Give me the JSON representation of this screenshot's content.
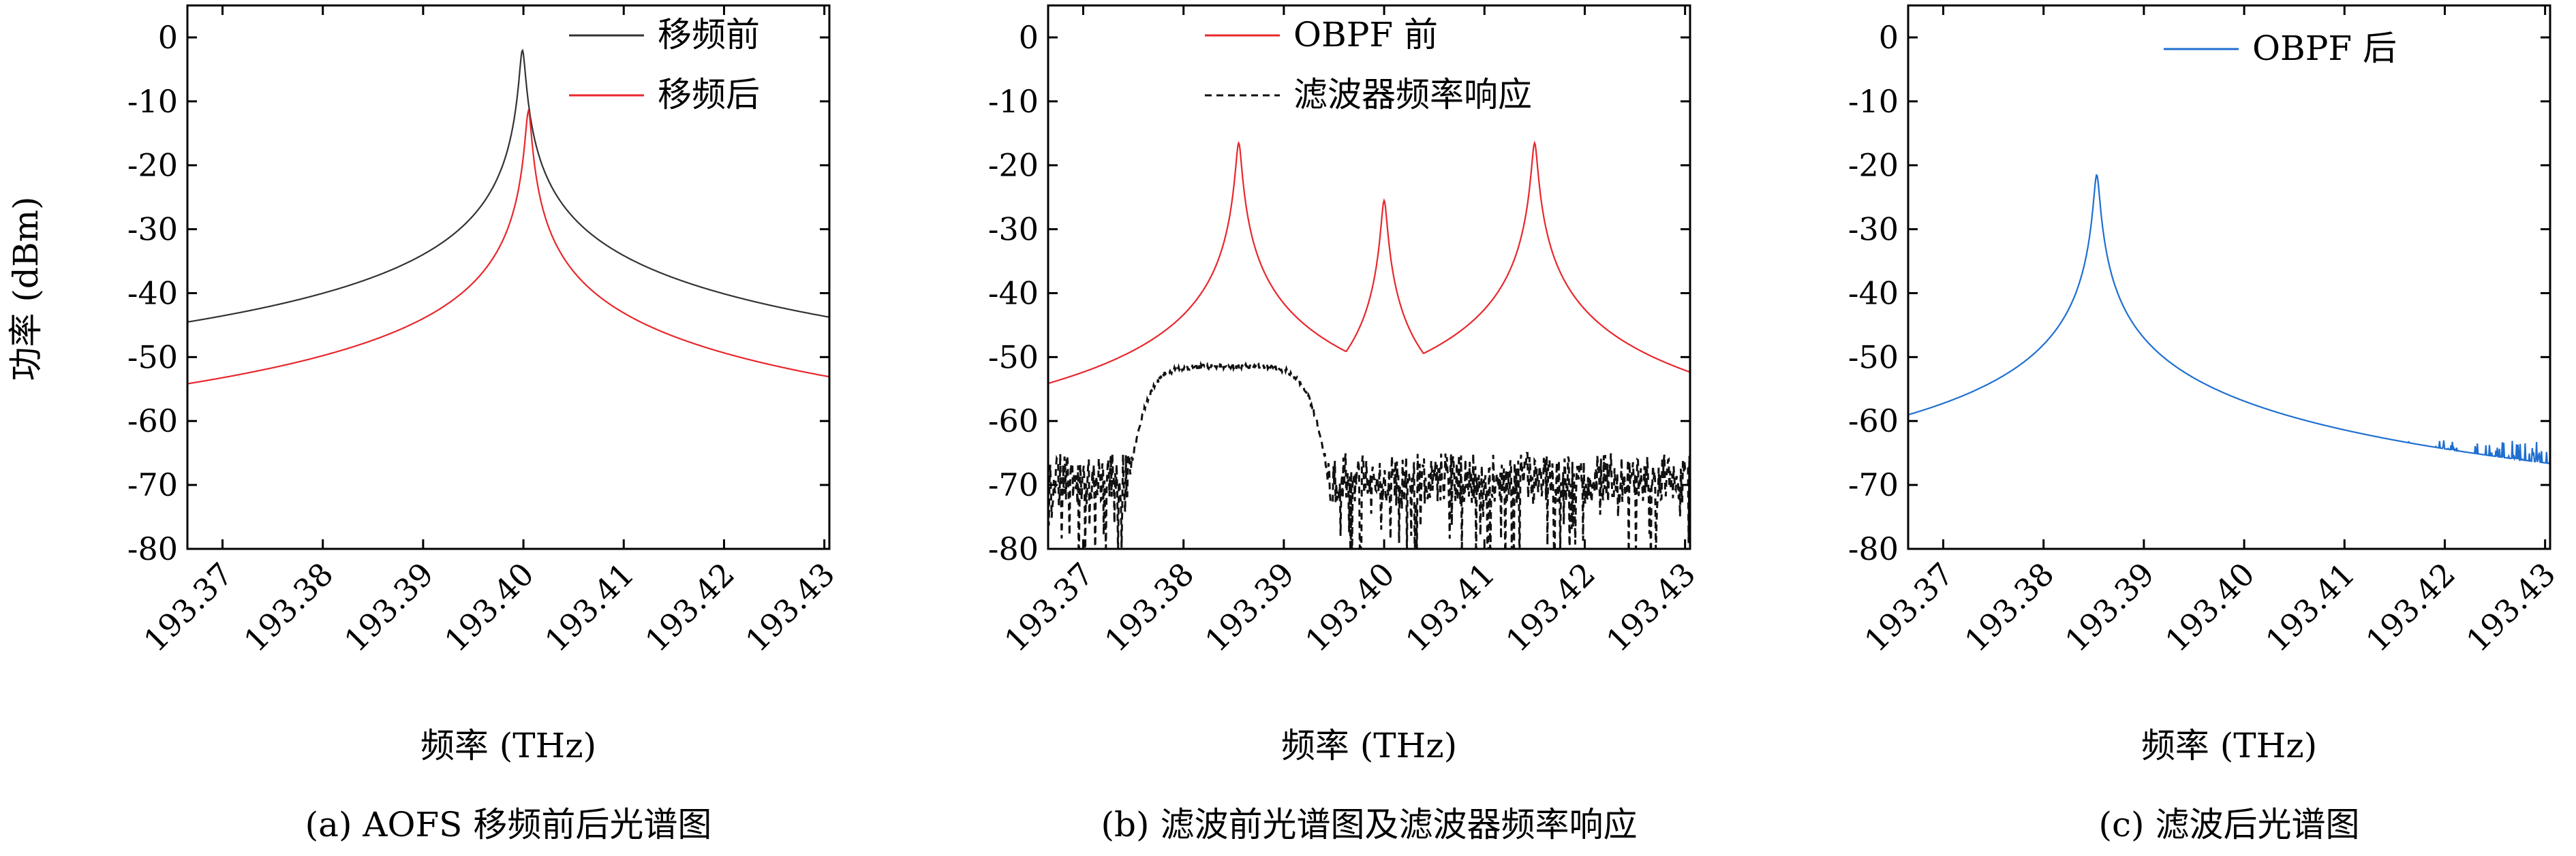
{
  "ylabel": "功率 (dBm)",
  "colors": {
    "black": "#333333",
    "red": "#e8272c",
    "blue": "#1f6fd1",
    "dash": "#111111"
  },
  "chart_data": [
    {
      "type": "line",
      "caption": "(a) AOFS 移频前后光谱图",
      "xlabel": "频率 (THz)",
      "xlim": [
        193.3665,
        193.4305
      ],
      "ylim": [
        -80,
        5
      ],
      "xticks": [
        193.37,
        193.38,
        193.39,
        193.4,
        193.41,
        193.42,
        193.43
      ],
      "xtick_labels": [
        "193.37",
        "193.38",
        "193.39",
        "193.40",
        "193.41",
        "193.42",
        "193.43"
      ],
      "yticks": [
        0,
        -10,
        -20,
        -30,
        -40,
        -50,
        -60,
        -70,
        -80
      ],
      "ytick_labels": [
        "0",
        "-10",
        "-20",
        "-30",
        "-40",
        "-50",
        "-60",
        "-70",
        "-80"
      ],
      "legend_position": "top-right",
      "series": [
        {
          "name": "移频前",
          "color": "#333333",
          "style": "solid",
          "noise_floor": -68,
          "shoulder": {
            "center": 193.4,
            "width": 0.011,
            "level": -55
          },
          "peaks": [
            {
              "x": 193.3999,
              "y": -2
            }
          ]
        },
        {
          "name": "移频后",
          "color": "#e8272c",
          "style": "solid",
          "noise_floor": -68,
          "peaks": [
            {
              "x": 193.4005,
              "y": -11.5
            }
          ]
        }
      ]
    },
    {
      "type": "line",
      "caption": "(b) 滤波前光谱图及滤波器频率响应",
      "xlabel": "频率 (THz)",
      "xlim": [
        193.3665,
        193.4305
      ],
      "ylim": [
        -80,
        5
      ],
      "xticks": [
        193.37,
        193.38,
        193.39,
        193.4,
        193.41,
        193.42,
        193.43
      ],
      "xtick_labels": [
        "193.37",
        "193.38",
        "193.39",
        "193.40",
        "193.41",
        "193.42",
        "193.43"
      ],
      "yticks": [
        0,
        -10,
        -20,
        -30,
        -40,
        -50,
        -60,
        -70,
        -80
      ],
      "ytick_labels": [
        "0",
        "-10",
        "-20",
        "-30",
        "-40",
        "-50",
        "-60",
        "-70",
        "-80"
      ],
      "legend_position": "top-center",
      "series": [
        {
          "name": "OBPF 前",
          "color": "#e8272c",
          "style": "solid",
          "noise_floor": -68,
          "peaks": [
            {
              "x": 193.3855,
              "y": -16.5
            },
            {
              "x": 193.4,
              "y": -25.5
            },
            {
              "x": 193.415,
              "y": -16.5
            }
          ]
        },
        {
          "name": "滤波器频率响应",
          "color": "#111111",
          "style": "dashed",
          "passband": {
            "center": 193.3845,
            "width": 0.0205,
            "level": -51.5
          },
          "noise_floor": -69
        }
      ]
    },
    {
      "type": "line",
      "caption": "(c) 滤波后光谱图",
      "xlabel": "频率 (THz)",
      "xlim": [
        193.3665,
        193.4305
      ],
      "ylim": [
        -80,
        5
      ],
      "xticks": [
        193.37,
        193.38,
        193.39,
        193.4,
        193.41,
        193.42,
        193.43
      ],
      "xtick_labels": [
        "193.37",
        "193.38",
        "193.39",
        "193.40",
        "193.41",
        "193.42",
        "193.43"
      ],
      "yticks": [
        0,
        -10,
        -20,
        -30,
        -40,
        -50,
        -60,
        -70,
        -80
      ],
      "ytick_labels": [
        "0",
        "-10",
        "-20",
        "-30",
        "-40",
        "-50",
        "-60",
        "-70",
        "-80"
      ],
      "legend_position": "top-center",
      "series": [
        {
          "name": "OBPF 后",
          "color": "#1f6fd1",
          "style": "solid",
          "noise_floor": -67,
          "peaks": [
            {
              "x": 193.3853,
              "y": -21.5
            }
          ]
        }
      ]
    }
  ]
}
